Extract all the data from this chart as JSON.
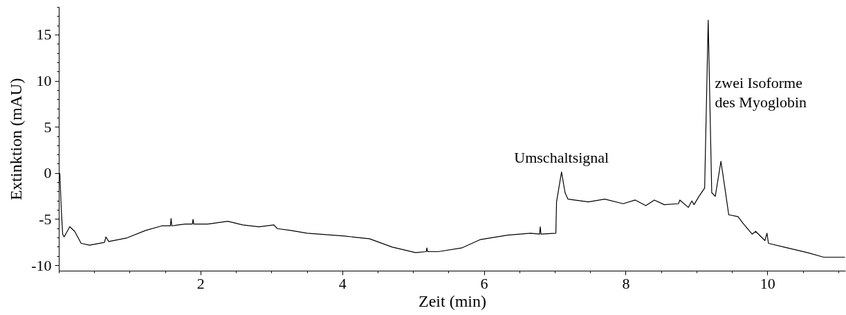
{
  "chart_data": {
    "type": "line",
    "xlabel": "Zeit (min)",
    "ylabel": "Extinktion (mAU)",
    "xlim": [
      0,
      11.1
    ],
    "ylim": [
      -10.6,
      18
    ],
    "xticks": [
      2,
      4,
      6,
      8,
      10
    ],
    "yticks": [
      -10,
      -5,
      0,
      5,
      10,
      15
    ],
    "grid": false,
    "marker": "none",
    "line_style": "solid",
    "x": [
      0.01,
      0.03,
      0.05,
      0.07,
      0.15,
      0.22,
      0.31,
      0.43,
      0.64,
      0.66,
      0.7,
      0.96,
      1.22,
      1.45,
      1.57,
      1.58,
      1.59,
      1.78,
      1.88,
      1.89,
      1.9,
      2.1,
      2.38,
      2.59,
      2.82,
      3.03,
      3.08,
      3.27,
      3.5,
      4.02,
      4.38,
      4.7,
      5.03,
      5.18,
      5.19,
      5.2,
      5.35,
      5.68,
      5.94,
      6.33,
      6.65,
      6.78,
      6.79,
      6.8,
      7.01,
      7.02,
      7.09,
      7.14,
      7.18,
      7.47,
      7.7,
      7.96,
      8.13,
      8.28,
      8.4,
      8.54,
      8.74,
      8.76,
      8.88,
      8.93,
      8.96,
      9.03,
      9.11,
      9.16,
      9.21,
      9.26,
      9.34,
      9.39,
      9.45,
      9.58,
      9.66,
      9.78,
      9.83,
      9.96,
      9.99,
      10.01,
      10.23,
      10.56,
      10.79,
      11.09
    ],
    "series": [
      {
        "color": "#000000",
        "values": [
          0.0,
          -3.9,
          -6.6,
          -6.9,
          -5.8,
          -6.3,
          -7.6,
          -7.8,
          -7.5,
          -6.9,
          -7.4,
          -7.0,
          -6.2,
          -5.7,
          -5.7,
          -4.9,
          -5.7,
          -5.5,
          -5.5,
          -5.0,
          -5.5,
          -5.5,
          -5.2,
          -5.6,
          -5.8,
          -5.6,
          -6.0,
          -6.2,
          -6.5,
          -6.8,
          -7.1,
          -8.0,
          -8.6,
          -8.5,
          -8.1,
          -8.5,
          -8.5,
          -8.1,
          -7.2,
          -6.7,
          -6.5,
          -6.6,
          -5.8,
          -6.6,
          -6.5,
          -3.1,
          0.15,
          -2.1,
          -2.8,
          -3.1,
          -2.8,
          -3.3,
          -2.9,
          -3.5,
          -2.9,
          -3.4,
          -3.3,
          -2.9,
          -3.7,
          -3.0,
          -3.4,
          -2.5,
          -1.6,
          16.6,
          -2.1,
          -2.5,
          1.3,
          -1.3,
          -4.5,
          -4.7,
          -5.5,
          -6.6,
          -6.3,
          -7.3,
          -6.5,
          -7.6,
          -8.0,
          -8.6,
          -9.1,
          -9.1
        ]
      }
    ],
    "annotations": [
      {
        "text": "Umschaltsignal",
        "x": 7.09,
        "y": 0.15
      },
      "zwei Isoforme\ndes Myoglobin"
    ]
  }
}
